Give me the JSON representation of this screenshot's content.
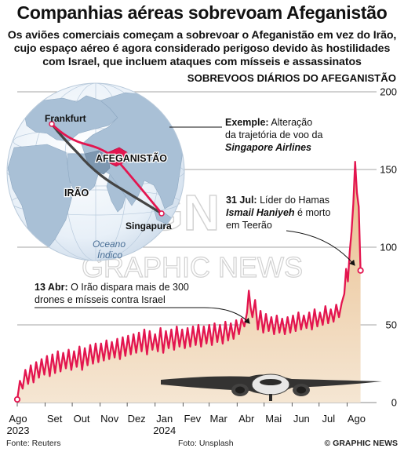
{
  "header": {
    "title": "Companhias aéreas sobrevoam Afeganistão",
    "subtitle": "Os aviões comerciais começam a sobrevoar o Afeganistão em vez do Irão, cujo espaço aéreo é agora considerado perigoso devido às hostilidades com Israel, que incluem ataques com mísseis e assassinatos"
  },
  "colors": {
    "line": "#e3154f",
    "area_top": "#e9bd8a",
    "area_bottom": "#f5e6d3",
    "grid": "#888888",
    "globe_land": "#a9c0d6",
    "globe_sea": "#e6eff7",
    "route_new": "#e3154f",
    "route_old": "#444444"
  },
  "map": {
    "labels": {
      "frankfurt": "Frankfurt",
      "afghanistan": "AFEGANISTÃO",
      "iran": "IRÃO",
      "singapore": "Singapura",
      "ocean_line1": "Oceano",
      "ocean_line2": "Índico"
    }
  },
  "annotations": {
    "example": {
      "bold": "Exemple:",
      "text1": " Alteração",
      "text2": "da trajetória de voo da",
      "italic": "Singapore Airlines"
    },
    "jul31": {
      "bold": "31 Jul:",
      "text1": " Líder do Hamas",
      "italic": "Ismail Haniyeh",
      "text2": " é morto",
      "text3": "em Teerão"
    },
    "apr13": {
      "bold": "13 Abr:",
      "text1": " O Irão dispara mais de 300",
      "text2": "drones e mísseis contra Israel"
    }
  },
  "watermark": {
    "line1": "GN",
    "line2": "GRAPHIC NEWS"
  },
  "chart_data": {
    "type": "line",
    "title": "SOBREVOOS DIÁRIOS DO AFEGANISTÃO",
    "xlabel": "",
    "ylabel": "",
    "ylim": [
      0,
      200
    ],
    "yticks": [
      0,
      50,
      100,
      150,
      200
    ],
    "x_range": [
      "2023-08-01",
      "2024-09-01"
    ],
    "x_ticks": [
      {
        "date": "2023-08-01",
        "label": "Ago",
        "year": "2023"
      },
      {
        "date": "2023-09-01",
        "label": "Set"
      },
      {
        "date": "2023-10-01",
        "label": "Out"
      },
      {
        "date": "2023-11-01",
        "label": "Nov"
      },
      {
        "date": "2023-12-01",
        "label": "Dez"
      },
      {
        "date": "2024-01-01",
        "label": "Jan",
        "year": "2024"
      },
      {
        "date": "2024-02-01",
        "label": "Fev"
      },
      {
        "date": "2024-03-01",
        "label": "Mar"
      },
      {
        "date": "2024-04-01",
        "label": "Abr"
      },
      {
        "date": "2024-05-01",
        "label": "Mai"
      },
      {
        "date": "2024-06-01",
        "label": "Jun"
      },
      {
        "date": "2024-07-01",
        "label": "Jul"
      },
      {
        "date": "2024-08-01",
        "label": "Ago"
      }
    ],
    "series": [
      {
        "values": [
          [
            "2023-08-01",
            2
          ],
          [
            "2023-08-04",
            14
          ],
          [
            "2023-08-07",
            9
          ],
          [
            "2023-08-10",
            21
          ],
          [
            "2023-08-13",
            12
          ],
          [
            "2023-08-16",
            24
          ],
          [
            "2023-08-19",
            13
          ],
          [
            "2023-08-22",
            26
          ],
          [
            "2023-08-25",
            16
          ],
          [
            "2023-08-28",
            28
          ],
          [
            "2023-08-31",
            18
          ],
          [
            "2023-09-03",
            30
          ],
          [
            "2023-09-06",
            17
          ],
          [
            "2023-09-09",
            31
          ],
          [
            "2023-09-12",
            19
          ],
          [
            "2023-09-15",
            33
          ],
          [
            "2023-09-18",
            20
          ],
          [
            "2023-09-21",
            32
          ],
          [
            "2023-09-24",
            22
          ],
          [
            "2023-09-27",
            34
          ],
          [
            "2023-09-30",
            21
          ],
          [
            "2023-10-03",
            33
          ],
          [
            "2023-10-06",
            23
          ],
          [
            "2023-10-09",
            36
          ],
          [
            "2023-10-12",
            21
          ],
          [
            "2023-10-15",
            35
          ],
          [
            "2023-10-18",
            24
          ],
          [
            "2023-10-21",
            37
          ],
          [
            "2023-10-24",
            25
          ],
          [
            "2023-10-27",
            38
          ],
          [
            "2023-10-30",
            26
          ],
          [
            "2023-11-02",
            38
          ],
          [
            "2023-11-05",
            27
          ],
          [
            "2023-11-08",
            40
          ],
          [
            "2023-11-11",
            28
          ],
          [
            "2023-11-14",
            39
          ],
          [
            "2023-11-17",
            29
          ],
          [
            "2023-11-20",
            41
          ],
          [
            "2023-11-23",
            28
          ],
          [
            "2023-11-26",
            42
          ],
          [
            "2023-11-29",
            30
          ],
          [
            "2023-12-02",
            43
          ],
          [
            "2023-12-05",
            31
          ],
          [
            "2023-12-08",
            44
          ],
          [
            "2023-12-11",
            32
          ],
          [
            "2023-12-14",
            45
          ],
          [
            "2023-12-17",
            33
          ],
          [
            "2023-12-20",
            47
          ],
          [
            "2023-12-23",
            31
          ],
          [
            "2023-12-26",
            46
          ],
          [
            "2023-12-29",
            34
          ],
          [
            "2024-01-01",
            44
          ],
          [
            "2024-01-04",
            33
          ],
          [
            "2024-01-07",
            48
          ],
          [
            "2024-01-10",
            32
          ],
          [
            "2024-01-13",
            46
          ],
          [
            "2024-01-16",
            35
          ],
          [
            "2024-01-19",
            47
          ],
          [
            "2024-01-22",
            34
          ],
          [
            "2024-01-25",
            49
          ],
          [
            "2024-01-28",
            36
          ],
          [
            "2024-01-31",
            47
          ],
          [
            "2024-02-03",
            35
          ],
          [
            "2024-02-06",
            48
          ],
          [
            "2024-02-09",
            36
          ],
          [
            "2024-02-12",
            49
          ],
          [
            "2024-02-15",
            37
          ],
          [
            "2024-02-18",
            50
          ],
          [
            "2024-02-21",
            36
          ],
          [
            "2024-02-24",
            49
          ],
          [
            "2024-02-27",
            38
          ],
          [
            "2024-03-01",
            50
          ],
          [
            "2024-03-04",
            37
          ],
          [
            "2024-03-07",
            51
          ],
          [
            "2024-03-10",
            39
          ],
          [
            "2024-03-13",
            50
          ],
          [
            "2024-03-16",
            38
          ],
          [
            "2024-03-19",
            52
          ],
          [
            "2024-03-22",
            40
          ],
          [
            "2024-03-25",
            51
          ],
          [
            "2024-03-28",
            41
          ],
          [
            "2024-03-31",
            53
          ],
          [
            "2024-04-03",
            44
          ],
          [
            "2024-04-06",
            54
          ],
          [
            "2024-04-09",
            49
          ],
          [
            "2024-04-12",
            58
          ],
          [
            "2024-04-14",
            72
          ],
          [
            "2024-04-16",
            61
          ],
          [
            "2024-04-18",
            55
          ],
          [
            "2024-04-21",
            66
          ],
          [
            "2024-04-24",
            47
          ],
          [
            "2024-04-27",
            59
          ],
          [
            "2024-04-30",
            45
          ],
          [
            "2024-05-03",
            57
          ],
          [
            "2024-05-06",
            46
          ],
          [
            "2024-05-09",
            55
          ],
          [
            "2024-05-12",
            44
          ],
          [
            "2024-05-15",
            56
          ],
          [
            "2024-05-18",
            45
          ],
          [
            "2024-05-21",
            54
          ],
          [
            "2024-05-24",
            44
          ],
          [
            "2024-05-27",
            55
          ],
          [
            "2024-05-30",
            45
          ],
          [
            "2024-06-02",
            56
          ],
          [
            "2024-06-05",
            46
          ],
          [
            "2024-06-08",
            58
          ],
          [
            "2024-06-11",
            47
          ],
          [
            "2024-06-14",
            56
          ],
          [
            "2024-06-17",
            48
          ],
          [
            "2024-06-20",
            58
          ],
          [
            "2024-06-23",
            47
          ],
          [
            "2024-06-26",
            60
          ],
          [
            "2024-06-29",
            49
          ],
          [
            "2024-07-02",
            58
          ],
          [
            "2024-07-05",
            50
          ],
          [
            "2024-07-08",
            62
          ],
          [
            "2024-07-11",
            51
          ],
          [
            "2024-07-14",
            60
          ],
          [
            "2024-07-17",
            52
          ],
          [
            "2024-07-20",
            63
          ],
          [
            "2024-07-23",
            55
          ],
          [
            "2024-07-26",
            64
          ],
          [
            "2024-07-29",
            70
          ],
          [
            "2024-07-31",
            86
          ],
          [
            "2024-08-02",
            78
          ],
          [
            "2024-08-04",
            97
          ],
          [
            "2024-08-06",
            110
          ],
          [
            "2024-08-08",
            128
          ],
          [
            "2024-08-10",
            155
          ],
          [
            "2024-08-12",
            135
          ],
          [
            "2024-08-14",
            126
          ],
          [
            "2024-08-16",
            85
          ]
        ]
      }
    ]
  },
  "footer": {
    "source": "Fonte: Reuters",
    "photo": "Foto: Unsplash",
    "credit": "© GRAPHIC NEWS"
  }
}
